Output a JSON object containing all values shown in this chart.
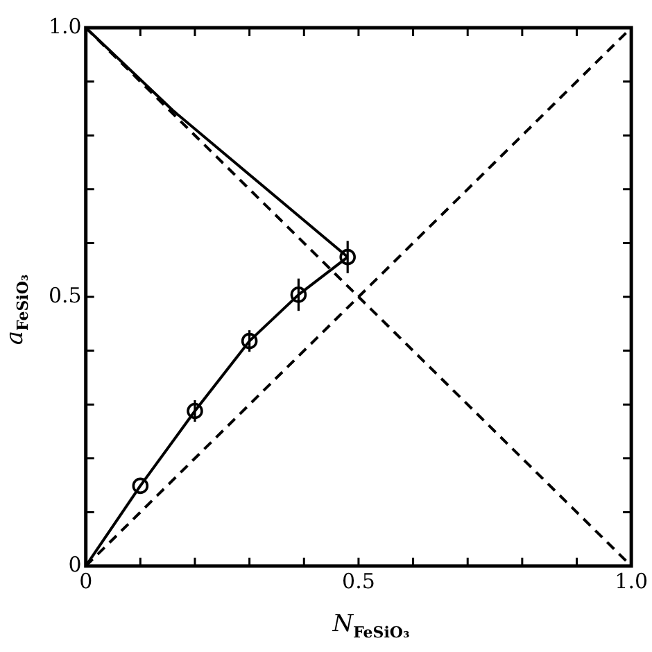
{
  "chart_data": {
    "type": "line",
    "xlabel": "N$_{FeSiO₃}$",
    "ylabel": "a$_{FeSiO₃}$",
    "xlim": [
      0,
      1
    ],
    "ylim": [
      0,
      1
    ],
    "xticks": [
      0,
      {
        "value": 0.1,
        "label": null
      },
      {
        "value": 0.2,
        "label": null
      },
      {
        "value": 0.3,
        "label": null
      },
      {
        "value": 0.4,
        "label": null
      },
      0.5,
      {
        "value": 0.6,
        "label": null
      },
      {
        "value": 0.7,
        "label": null
      },
      {
        "value": 0.8,
        "label": null
      },
      {
        "value": 0.9,
        "label": null
      },
      {
        "value": 1,
        "label": "1.0"
      }
    ],
    "yticks": [
      0,
      {
        "value": 0.1,
        "label": null
      },
      {
        "value": 0.2,
        "label": null
      },
      {
        "value": 0.3,
        "label": null
      },
      {
        "value": 0.4,
        "label": null
      },
      0.5,
      {
        "value": 0.6,
        "label": null
      },
      {
        "value": 0.7,
        "label": null
      },
      {
        "value": 0.8,
        "label": null
      },
      {
        "value": 0.9,
        "label": null
      },
      {
        "value": 1,
        "label": "1.0"
      }
    ],
    "grid": false,
    "legend": false,
    "series": [
      {
        "color": "#000000",
        "line_style": "dashed",
        "marker": "none",
        "x": [
          0,
          1
        ],
        "values": [
          0,
          1
        ]
      },
      {
        "color": "#000000",
        "line_style": "dashed",
        "marker": "none",
        "x": [
          0,
          1
        ],
        "values": [
          1,
          0
        ]
      },
      {
        "color": "#000000",
        "line_style": "solid",
        "marker": "none",
        "x": [
          0,
          0.1,
          0.2,
          0.3,
          0.39,
          0.48
        ],
        "values": [
          0,
          0.149,
          0.288,
          0.418,
          0.504,
          0.574
        ]
      },
      {
        "color": "#000000",
        "line_style": "solid",
        "marker": "none",
        "x": [
          0,
          0.16,
          0.32,
          0.48
        ],
        "values": [
          1,
          0.846,
          0.71,
          0.574
        ]
      },
      {
        "type": "scatter",
        "color": "#000000",
        "marker": "circle",
        "x": [
          0.1,
          0.2,
          0.3,
          0.39,
          0.48
        ],
        "values": [
          0.149,
          0.288,
          0.418,
          0.504,
          0.574
        ],
        "errors": [
          null,
          0.02,
          0.02,
          0.03,
          0.03
        ]
      }
    ]
  }
}
